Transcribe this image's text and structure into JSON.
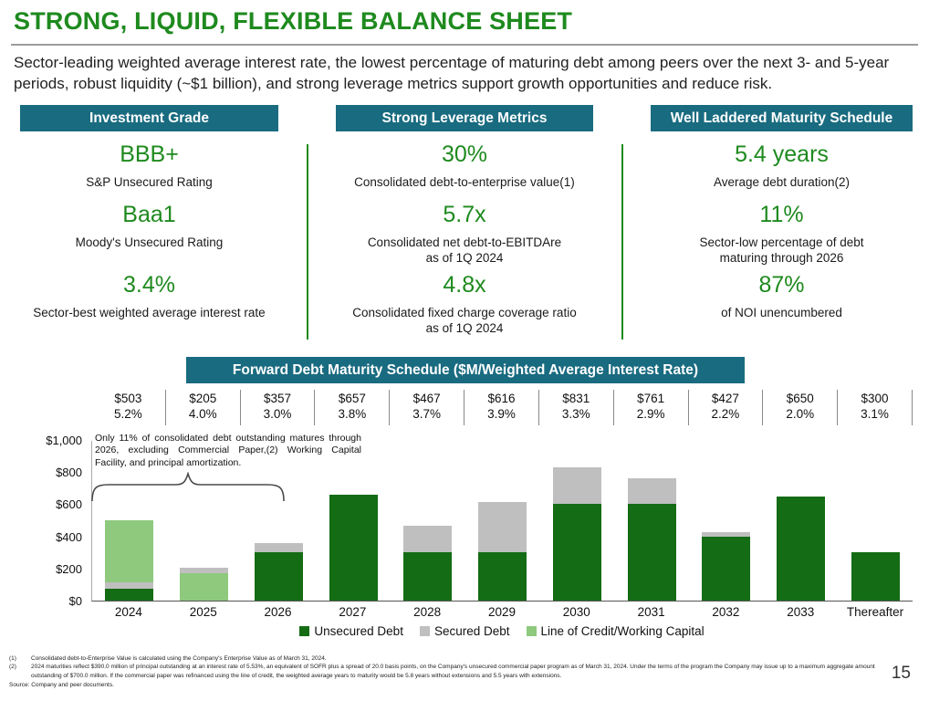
{
  "colors": {
    "accent_green": "#1e8a1e",
    "teal_header": "#196b80",
    "bar_unsecured": "#146c14",
    "bar_secured": "#bfbfbf",
    "bar_loc": "#8ec97e"
  },
  "slide": {
    "title": "STRONG, LIQUID, FLEXIBLE BALANCE SHEET",
    "intro": "Sector-leading weighted average interest rate, the lowest percentage of maturing debt among peers over the next 3- and 5-year periods, robust liquidity (~$1 billion), and strong leverage metrics support growth opportunities and reduce risk.",
    "page_number": "15"
  },
  "columns": [
    {
      "header": "Investment Grade",
      "stats": [
        {
          "value": "BBB+",
          "label": "S&P Unsecured Rating"
        },
        {
          "value": "Baa1",
          "label": "Moody's Unsecured Rating"
        },
        {
          "value": "3.4%",
          "label": "Sector-best weighted average interest rate"
        }
      ]
    },
    {
      "header": "Strong Leverage Metrics",
      "stats": [
        {
          "value": "30%",
          "label": "Consolidated debt-to-enterprise value(1)"
        },
        {
          "value": "5.7x",
          "label": "Consolidated net debt-to-EBITDAre\nas of 1Q 2024"
        },
        {
          "value": "4.8x",
          "label": "Consolidated fixed charge coverage ratio\nas of 1Q 2024"
        }
      ]
    },
    {
      "header": "Well Laddered Maturity Schedule",
      "stats": [
        {
          "value": "5.4 years",
          "label": "Average debt duration(2)"
        },
        {
          "value": "11%",
          "label": "Sector-low percentage of debt\nmaturing through 2026"
        },
        {
          "value": "87%",
          "label": "of NOI unencumbered"
        }
      ]
    }
  ],
  "schedule": {
    "banner": "Forward Debt Maturity Schedule ($M/Weighted Average Interest Rate)",
    "entries": [
      {
        "amount": "$503",
        "rate": "5.2%"
      },
      {
        "amount": "$205",
        "rate": "4.0%"
      },
      {
        "amount": "$357",
        "rate": "3.0%"
      },
      {
        "amount": "$657",
        "rate": "3.8%"
      },
      {
        "amount": "$467",
        "rate": "3.7%"
      },
      {
        "amount": "$616",
        "rate": "3.9%"
      },
      {
        "amount": "$831",
        "rate": "3.3%"
      },
      {
        "amount": "$761",
        "rate": "2.9%"
      },
      {
        "amount": "$427",
        "rate": "2.2%"
      },
      {
        "amount": "$650",
        "rate": "2.0%"
      },
      {
        "amount": "$300",
        "rate": "3.1%"
      }
    ]
  },
  "chart_data": {
    "type": "bar",
    "stacked": true,
    "title": "Forward Debt Maturity Schedule ($M/Weighted Average Interest Rate)",
    "ylim": [
      0,
      1000
    ],
    "yticks": [
      "$0",
      "$200",
      "$400",
      "$600",
      "$800",
      "$1,000"
    ],
    "categories": [
      "2024",
      "2025",
      "2026",
      "2027",
      "2028",
      "2029",
      "2030",
      "2031",
      "2032",
      "2033",
      "Thereafter"
    ],
    "series": [
      {
        "name": "Unsecured Debt",
        "values": [
          75,
          0,
          300,
          657,
          300,
          300,
          600,
          600,
          400,
          650,
          300
        ]
      },
      {
        "name": "Secured Debt",
        "values": [
          40,
          35,
          57,
          0,
          167,
          316,
          231,
          161,
          27,
          0,
          0
        ]
      },
      {
        "name": "Line of Credit/Working Capital",
        "values": [
          388,
          170,
          0,
          0,
          0,
          0,
          0,
          0,
          0,
          0,
          0
        ]
      }
    ],
    "totals": [
      503,
      205,
      357,
      657,
      467,
      616,
      831,
      761,
      427,
      650,
      300
    ],
    "rates_pct": [
      5.2,
      4.0,
      3.0,
      3.8,
      3.7,
      3.9,
      3.3,
      2.9,
      2.2,
      2.0,
      3.1
    ],
    "series_colors": {
      "Unsecured Debt": "#146c14",
      "Secured Debt": "#bfbfbf",
      "Line of Credit/Working Capital": "#8ec97e"
    },
    "legend": [
      "Unsecured Debt",
      "Secured Debt",
      "Line of Credit/Working Capital"
    ],
    "legend_position": "bottom",
    "bars": [
      {
        "category": "2024",
        "segments": [
          {
            "series": "Unsecured Debt",
            "value": 75
          },
          {
            "series": "Secured Debt",
            "value": 40
          },
          {
            "series": "Line of Credit/Working Capital",
            "value": 388
          }
        ]
      },
      {
        "category": "2025",
        "segments": [
          {
            "series": "Line of Credit/Working Capital",
            "value": 170
          },
          {
            "series": "Secured Debt",
            "value": 35
          }
        ]
      },
      {
        "category": "2026",
        "segments": [
          {
            "series": "Unsecured Debt",
            "value": 300
          },
          {
            "series": "Secured Debt",
            "value": 57
          }
        ]
      },
      {
        "category": "2027",
        "segments": [
          {
            "series": "Unsecured Debt",
            "value": 657
          }
        ]
      },
      {
        "category": "2028",
        "segments": [
          {
            "series": "Unsecured Debt",
            "value": 300
          },
          {
            "series": "Secured Debt",
            "value": 167
          }
        ]
      },
      {
        "category": "2029",
        "segments": [
          {
            "series": "Unsecured Debt",
            "value": 300
          },
          {
            "series": "Secured Debt",
            "value": 316
          }
        ]
      },
      {
        "category": "2030",
        "segments": [
          {
            "series": "Unsecured Debt",
            "value": 600
          },
          {
            "series": "Secured Debt",
            "value": 231
          }
        ]
      },
      {
        "category": "2031",
        "segments": [
          {
            "series": "Unsecured Debt",
            "value": 600
          },
          {
            "series": "Secured Debt",
            "value": 161
          }
        ]
      },
      {
        "category": "2032",
        "segments": [
          {
            "series": "Unsecured Debt",
            "value": 400
          },
          {
            "series": "Secured Debt",
            "value": 27
          }
        ]
      },
      {
        "category": "2033",
        "segments": [
          {
            "series": "Unsecured Debt",
            "value": 650
          }
        ]
      },
      {
        "category": "Thereafter",
        "segments": [
          {
            "series": "Unsecured Debt",
            "value": 300
          }
        ]
      }
    ],
    "annotation": "Only 11% of consolidated debt outstanding matures through 2026, excluding Commercial Paper,(2) Working Capital Facility, and principal amortization."
  },
  "footnotes": [
    {
      "marker": "(1)",
      "text": "Consolidated debt-to-Enterprise Value is calculated using the Company's Enterprise Value as of March 31, 2024."
    },
    {
      "marker": "(2)",
      "text": "2024 maturities reflect $390.0 million of principal outstanding at an interest rate of 5.53%, an equivalent of SOFR plus a spread of 20.0 basis points, on the Company's unsecured commercial paper program as of March 31, 2024. Under the terms of the program the Company may issue up to a maximum aggregate amount outstanding of $700.0 million. If the commercial paper was refinanced using the line of credit, the weighted average years to maturity would be 5.8 years without extensions and 5.5 years with extensions."
    }
  ],
  "source": "Source: Company and peer documents."
}
